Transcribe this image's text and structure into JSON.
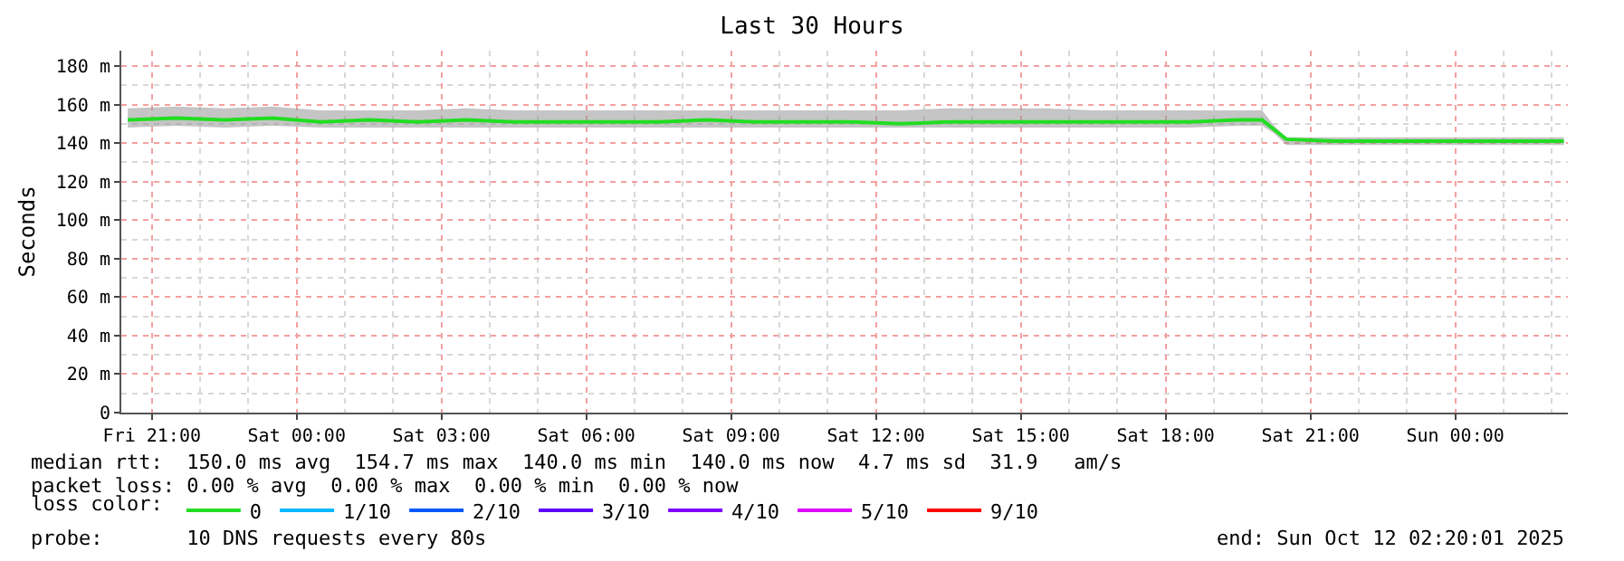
{
  "chart_data": {
    "type": "line",
    "title": "Last 30 Hours",
    "ylabel": "Seconds",
    "legend_title": "loss color:",
    "x": [
      "2025-10-10T20:30",
      "2025-10-10T21:30",
      "2025-10-10T22:30",
      "2025-10-10T23:30",
      "2025-10-11T00:30",
      "2025-10-11T01:30",
      "2025-10-11T02:30",
      "2025-10-11T03:30",
      "2025-10-11T04:30",
      "2025-10-11T05:30",
      "2025-10-11T06:30",
      "2025-10-11T07:30",
      "2025-10-11T08:30",
      "2025-10-11T09:30",
      "2025-10-11T10:30",
      "2025-10-11T11:30",
      "2025-10-11T12:30",
      "2025-10-11T13:30",
      "2025-10-11T14:30",
      "2025-10-11T15:30",
      "2025-10-11T16:30",
      "2025-10-11T17:30",
      "2025-10-11T18:30",
      "2025-10-11T19:30",
      "2025-10-11T20:00",
      "2025-10-11T20:15",
      "2025-10-11T20:30",
      "2025-10-11T21:30",
      "2025-10-11T22:30",
      "2025-10-11T23:30",
      "2025-10-12T00:30",
      "2025-10-12T01:30",
      "2025-10-12T02:15"
    ],
    "series": [
      {
        "name": "0",
        "color": "#22dd22",
        "values": [
          152,
          153,
          152,
          153,
          151,
          152,
          151,
          152,
          151,
          151,
          151,
          151,
          152,
          151,
          151,
          151,
          150,
          151,
          151,
          151,
          151,
          151,
          151,
          152,
          152,
          147,
          142,
          141,
          141,
          141,
          141,
          141,
          141
        ],
        "lower": [
          148,
          149,
          148,
          149,
          148,
          148,
          148,
          148,
          148,
          148,
          148,
          148,
          148,
          148,
          148,
          148,
          148,
          148,
          148,
          148,
          148,
          148,
          148,
          149,
          149,
          145,
          139,
          139,
          139,
          139,
          139,
          139,
          139
        ],
        "upper": [
          158,
          159,
          158,
          159,
          157,
          157,
          157,
          158,
          157,
          157,
          157,
          157,
          157,
          157,
          157,
          157,
          157,
          158,
          158,
          158,
          157,
          157,
          157,
          157,
          157,
          149,
          143,
          143,
          143,
          143,
          143,
          143,
          143
        ]
      },
      {
        "name": "1/10",
        "color": "#00b8ff",
        "values": [
          null,
          null,
          null,
          null,
          null,
          null,
          null,
          null,
          null,
          null,
          null,
          null,
          null,
          null,
          null,
          null,
          null,
          null,
          null,
          null,
          null,
          null,
          null,
          null,
          null,
          null,
          null,
          null,
          null,
          null,
          null,
          null,
          null
        ]
      },
      {
        "name": "2/10",
        "color": "#0059ff",
        "values": [
          null,
          null,
          null,
          null,
          null,
          null,
          null,
          null,
          null,
          null,
          null,
          null,
          null,
          null,
          null,
          null,
          null,
          null,
          null,
          null,
          null,
          null,
          null,
          null,
          null,
          null,
          null,
          null,
          null,
          null,
          null,
          null,
          null
        ]
      },
      {
        "name": "3/10",
        "color": "#5e00ff",
        "values": [
          null,
          null,
          null,
          null,
          null,
          null,
          null,
          null,
          null,
          null,
          null,
          null,
          null,
          null,
          null,
          null,
          null,
          null,
          null,
          null,
          null,
          null,
          null,
          null,
          null,
          null,
          null,
          null,
          null,
          null,
          null,
          null,
          null
        ]
      },
      {
        "name": "4/10",
        "color": "#7e00ff",
        "values": [
          null,
          null,
          null,
          null,
          null,
          null,
          null,
          null,
          null,
          null,
          null,
          null,
          null,
          null,
          null,
          null,
          null,
          null,
          null,
          null,
          null,
          null,
          null,
          null,
          null,
          null,
          null,
          null,
          null,
          null,
          null,
          null,
          null
        ]
      },
      {
        "name": "5/10",
        "color": "#dd00ff",
        "values": [
          null,
          null,
          null,
          null,
          null,
          null,
          null,
          null,
          null,
          null,
          null,
          null,
          null,
          null,
          null,
          null,
          null,
          null,
          null,
          null,
          null,
          null,
          null,
          null,
          null,
          null,
          null,
          null,
          null,
          null,
          null,
          null,
          null
        ]
      },
      {
        "name": "9/10",
        "color": "#ff0000",
        "values": [
          null,
          null,
          null,
          null,
          null,
          null,
          null,
          null,
          null,
          null,
          null,
          null,
          null,
          null,
          null,
          null,
          null,
          null,
          null,
          null,
          null,
          null,
          null,
          null,
          null,
          null,
          null,
          null,
          null,
          null,
          null,
          null,
          null
        ]
      }
    ],
    "xlim": [
      "2025-10-10T20:22",
      "2025-10-12T02:20"
    ],
    "xticks": [
      {
        "value": "2025-10-10T21:00",
        "label": "Fri 21:00"
      },
      {
        "value": "2025-10-11T00:00",
        "label": "Sat 00:00"
      },
      {
        "value": "2025-10-11T03:00",
        "label": "Sat 03:00"
      },
      {
        "value": "2025-10-11T06:00",
        "label": "Sat 06:00"
      },
      {
        "value": "2025-10-11T09:00",
        "label": "Sat 09:00"
      },
      {
        "value": "2025-10-11T12:00",
        "label": "Sat 12:00"
      },
      {
        "value": "2025-10-11T15:00",
        "label": "Sat 15:00"
      },
      {
        "value": "2025-10-11T18:00",
        "label": "Sat 18:00"
      },
      {
        "value": "2025-10-11T21:00",
        "label": "Sat 21:00"
      },
      {
        "value": "2025-10-12T00:00",
        "label": "Sun 00:00"
      }
    ],
    "ylim": [
      0,
      188
    ],
    "yticks": [
      0,
      {
        "value": 20,
        "label": "20 m"
      },
      {
        "value": 40,
        "label": "40 m"
      },
      {
        "value": 60,
        "label": "60 m"
      },
      {
        "value": 80,
        "label": "80 m"
      },
      {
        "value": 100,
        "label": "100 m"
      },
      {
        "value": 120,
        "label": "120 m"
      },
      {
        "value": 140,
        "label": "140 m"
      },
      {
        "value": 160,
        "label": "160 m"
      },
      {
        "value": 180,
        "label": "180 m"
      }
    ],
    "grid": true,
    "legend": "bottom",
    "line_style": "solid",
    "annotations": [
      "median rtt:  150.0 ms avg  154.7 ms max  140.0 ms min  140.0 ms now  4.7 ms sd  31.9   am/s",
      "packet loss: 0.00 % avg  0.00 % max  0.00 % min  0.00 % now",
      "probe:       10 DNS requests every 80s",
      "end: Sun Oct 12 02:20:01 2025"
    ]
  }
}
